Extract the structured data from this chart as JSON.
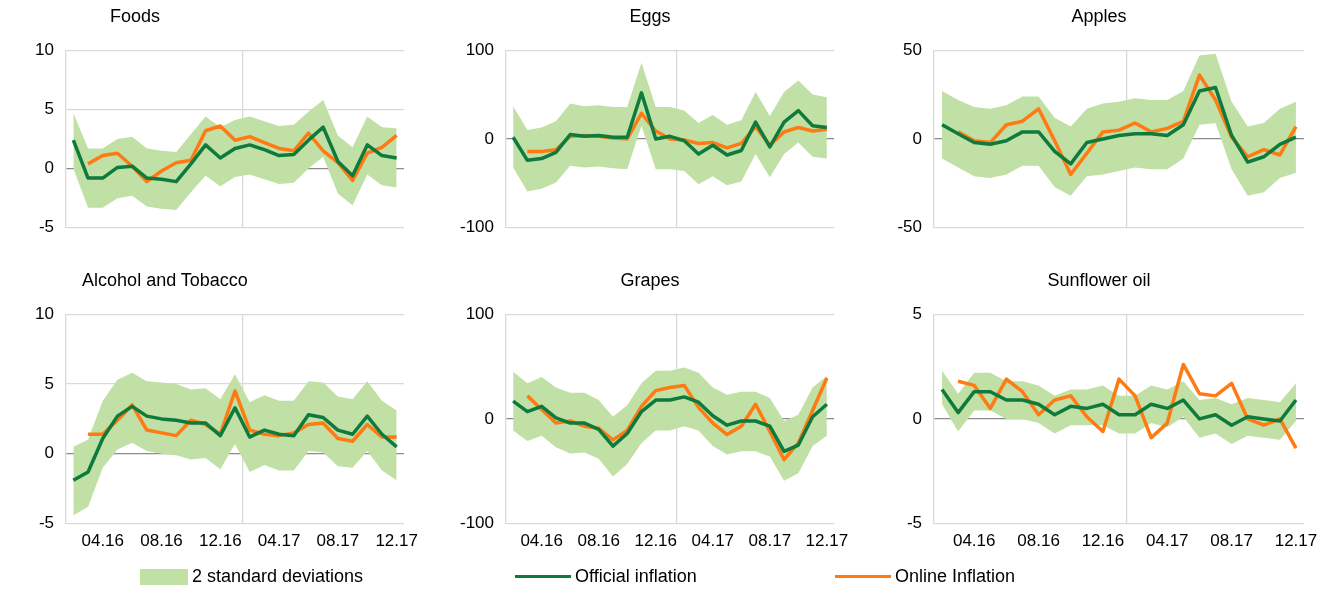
{
  "chart_data": [
    {
      "type": "line",
      "title": "Foods",
      "categories": [
        null,
        null,
        "04.16",
        null,
        null,
        null,
        "08.16",
        null,
        null,
        null,
        "12.16",
        null,
        null,
        null,
        "04.17",
        null,
        null,
        null,
        "08.17",
        null,
        null,
        null,
        "12.17"
      ],
      "ylim": [
        -5,
        10
      ],
      "yticks": [
        -5,
        0,
        5,
        10
      ],
      "grid": true,
      "legend": "bottom",
      "marker": "none",
      "line_style": "solid",
      "tick_labels": "y",
      "series": [
        {
          "name": "2 standard deviations",
          "type": "area",
          "color": "#c0e0a5",
          "values": [
            null,
            null,
            null,
            null,
            null,
            null,
            null,
            null,
            null,
            null,
            null,
            null,
            null,
            null,
            null,
            null,
            null,
            null,
            null,
            null,
            null,
            null,
            null
          ],
          "lower": [
            0.0,
            -3.3,
            -3.3,
            -2.5,
            -2.3,
            -3.2,
            -3.4,
            -3.5,
            -2.0,
            -0.6,
            -1.5,
            -0.7,
            -0.5,
            -0.9,
            -1.3,
            -1.2,
            0.0,
            1.0,
            -2.1,
            -3.1,
            -0.5,
            -1.4,
            -1.6
          ],
          "upper": [
            4.7,
            1.7,
            1.7,
            2.5,
            2.7,
            1.7,
            1.5,
            1.4,
            2.9,
            4.4,
            3.5,
            4.1,
            4.4,
            4.0,
            3.6,
            3.7,
            4.8,
            5.8,
            2.8,
            1.8,
            4.4,
            3.5,
            3.4
          ]
        },
        {
          "name": "Official inflation",
          "type": "line",
          "color": "#0e7a3c",
          "values": [
            2.4,
            -0.8,
            -0.8,
            0.1,
            0.2,
            -0.8,
            -0.9,
            -1.1,
            0.4,
            2.0,
            0.9,
            1.7,
            2.0,
            1.6,
            1.1,
            1.2,
            2.4,
            3.5,
            0.6,
            -0.6,
            2.0,
            1.1,
            0.9
          ]
        },
        {
          "name": "Online Inflation",
          "type": "line",
          "color": "#ff7a12",
          "values": [
            null,
            0.4,
            1.1,
            1.3,
            0.2,
            -1.1,
            -0.2,
            0.5,
            0.7,
            3.2,
            3.6,
            2.4,
            2.7,
            2.2,
            1.7,
            1.5,
            3.0,
            1.5,
            0.5,
            -1.0,
            1.3,
            1.8,
            2.8
          ]
        }
      ]
    },
    {
      "type": "line",
      "title": "Eggs",
      "categories": [
        null,
        null,
        "04.16",
        null,
        null,
        null,
        "08.16",
        null,
        null,
        null,
        "12.16",
        null,
        null,
        null,
        "04.17",
        null,
        null,
        null,
        "08.17",
        null,
        null,
        null,
        "12.17"
      ],
      "ylim": [
        -100,
        100
      ],
      "yticks": [
        -100,
        0,
        100
      ],
      "grid": true,
      "legend": "bottom",
      "marker": "none",
      "line_style": "solid",
      "tick_labels": "y",
      "series": [
        {
          "type": "area",
          "color": "#c0e0a5",
          "values": [
            null,
            null,
            null,
            null,
            null,
            null,
            null,
            null,
            null,
            null,
            null,
            null,
            null,
            null,
            null,
            null,
            null,
            null,
            null,
            null,
            null,
            null,
            null
          ],
          "lower": [
            -32,
            -59,
            -56,
            -49,
            -30,
            -32,
            -31,
            -33,
            -34,
            15,
            -34,
            -34,
            -36,
            -51,
            -42,
            -52,
            -48,
            -17,
            -43,
            -17,
            -4,
            -20,
            -22
          ],
          "upper": [
            37,
            10,
            13,
            20,
            40,
            37,
            38,
            36,
            36,
            86,
            36,
            36,
            32,
            18,
            27,
            16,
            21,
            53,
            26,
            53,
            66,
            50,
            47
          ]
        },
        {
          "name": "Official inflation",
          "type": "line",
          "color": "#0e7a3c",
          "values": [
            2,
            -24,
            -22,
            -15,
            5,
            3,
            4,
            2,
            2,
            52,
            0,
            3,
            -2,
            -17,
            -7,
            -18,
            -13,
            19,
            -9,
            19,
            32,
            15,
            13
          ]
        },
        {
          "name": "Online Inflation",
          "type": "line",
          "color": "#ff7a12",
          "values": [
            null,
            -14,
            -14,
            -12,
            3,
            4,
            3,
            1,
            0,
            29,
            9,
            0,
            -1,
            -5,
            -4,
            -10,
            -5,
            14,
            -7,
            8,
            13,
            9,
            11
          ]
        }
      ]
    },
    {
      "type": "line",
      "title": "Apples",
      "categories": [
        null,
        null,
        "04.16",
        null,
        null,
        null,
        "08.16",
        null,
        null,
        null,
        "12.16",
        null,
        null,
        null,
        "04.17",
        null,
        null,
        null,
        "08.17",
        null,
        null,
        null,
        "12.17"
      ],
      "ylim": [
        -50,
        50
      ],
      "yticks": [
        -50,
        0,
        50
      ],
      "grid": true,
      "legend": "bottom",
      "marker": "none",
      "line_style": "solid",
      "tick_labels": "y",
      "series": [
        {
          "type": "area",
          "color": "#c0e0a5",
          "values": [
            null,
            null,
            null,
            null,
            null,
            null,
            null,
            null,
            null,
            null,
            null,
            null,
            null,
            null,
            null,
            null,
            null,
            null,
            null,
            null,
            null,
            null,
            null
          ],
          "lower": [
            -11,
            -16,
            -21,
            -22,
            -20,
            -15,
            -15,
            -27,
            -32,
            -21,
            -20,
            -18,
            -16,
            -17,
            -17,
            -11,
            8,
            9,
            -17,
            -32,
            -30,
            -22,
            -19
          ],
          "upper": [
            27,
            22,
            18,
            17,
            19,
            24,
            24,
            12,
            7,
            17,
            20,
            21,
            23,
            22,
            22,
            27,
            47,
            48,
            21,
            7,
            9,
            17,
            21
          ]
        },
        {
          "name": "Official inflation",
          "type": "line",
          "color": "#0e7a3c",
          "values": [
            8,
            3,
            -2,
            -3,
            -1,
            4,
            4,
            -7,
            -14,
            -2,
            0,
            2,
            3,
            3,
            2,
            8,
            27,
            29,
            2,
            -13,
            -10,
            -3,
            1
          ]
        },
        {
          "name": "Online Inflation",
          "type": "line",
          "color": "#ff7a12",
          "values": [
            null,
            4,
            -1,
            -2,
            8,
            10,
            17,
            -1,
            -20,
            -8,
            4,
            5,
            9,
            4,
            6,
            10,
            36,
            22,
            1,
            -10,
            -6,
            -9,
            7
          ]
        }
      ]
    },
    {
      "type": "line",
      "title": "Alcohol and Tobacco",
      "categories": [
        null,
        null,
        "04.16",
        null,
        null,
        null,
        "08.16",
        null,
        null,
        null,
        "12.16",
        null,
        null,
        null,
        "04.17",
        null,
        null,
        null,
        "08.17",
        null,
        null,
        null,
        "12.17"
      ],
      "ylim": [
        -5,
        10
      ],
      "yticks": [
        -5,
        0,
        5,
        10
      ],
      "grid": true,
      "legend": "bottom",
      "marker": "none",
      "line_style": "solid",
      "series": [
        {
          "type": "area",
          "color": "#c0e0a5",
          "values": [
            null,
            null,
            null,
            null,
            null,
            null,
            null,
            null,
            null,
            null,
            null,
            null,
            null,
            null,
            null,
            null,
            null,
            null,
            null,
            null,
            null,
            null,
            null
          ],
          "lower": [
            -4.4,
            -3.8,
            -1.0,
            0.3,
            0.8,
            0.2,
            0.0,
            -0.1,
            -0.4,
            -0.3,
            -1.1,
            0.7,
            -1.3,
            -0.8,
            -1.2,
            -1.2,
            0.2,
            0.1,
            -0.9,
            -1.0,
            0.2,
            -1.2,
            -1.9
          ],
          "upper": [
            0.5,
            1.0,
            3.8,
            5.3,
            5.8,
            5.2,
            5.1,
            5.0,
            4.6,
            4.7,
            3.9,
            5.7,
            3.7,
            4.2,
            3.8,
            3.8,
            5.2,
            5.1,
            4.1,
            3.9,
            5.2,
            3.8,
            3.1
          ]
        },
        {
          "name": "Official inflation",
          "type": "line",
          "color": "#0e7a3c",
          "values": [
            -1.9,
            -1.3,
            1.1,
            2.7,
            3.4,
            2.7,
            2.5,
            2.4,
            2.2,
            2.2,
            1.3,
            3.3,
            1.2,
            1.7,
            1.4,
            1.3,
            2.8,
            2.6,
            1.7,
            1.4,
            2.7,
            1.4,
            0.5
          ]
        },
        {
          "name": "Online Inflation",
          "type": "line",
          "color": "#ff7a12",
          "values": [
            null,
            1.4,
            1.4,
            2.4,
            3.5,
            1.7,
            1.5,
            1.3,
            2.4,
            2.1,
            1.4,
            4.5,
            1.7,
            1.4,
            1.3,
            1.5,
            2.1,
            2.2,
            1.1,
            0.9,
            2.1,
            1.2,
            1.2
          ]
        }
      ]
    },
    {
      "type": "line",
      "title": "Grapes",
      "categories": [
        null,
        null,
        "04.16",
        null,
        null,
        null,
        "08.16",
        null,
        null,
        null,
        "12.16",
        null,
        null,
        null,
        "04.17",
        null,
        null,
        null,
        "08.17",
        null,
        null,
        null,
        "12.17"
      ],
      "ylim": [
        -100,
        100
      ],
      "yticks": [
        -100,
        0,
        100
      ],
      "grid": true,
      "legend": "bottom",
      "marker": "none",
      "line_style": "solid",
      "series": [
        {
          "type": "area",
          "color": "#c0e0a5",
          "values": [
            null,
            null,
            null,
            null,
            null,
            null,
            null,
            null,
            null,
            null,
            null,
            null,
            null,
            null,
            null,
            null,
            null,
            null,
            null,
            null,
            null,
            null,
            null
          ],
          "lower": [
            -11,
            -21,
            -16,
            -27,
            -33,
            -32,
            -38,
            -55,
            -43,
            -23,
            -11,
            -11,
            -7,
            -11,
            -26,
            -34,
            -31,
            -31,
            -36,
            -59,
            -52,
            -26,
            -16
          ],
          "upper": [
            45,
            34,
            40,
            30,
            25,
            25,
            18,
            2,
            13,
            34,
            46,
            46,
            49,
            44,
            30,
            23,
            26,
            26,
            20,
            -2,
            4,
            30,
            41
          ]
        },
        {
          "name": "Official inflation",
          "type": "line",
          "color": "#0e7a3c",
          "values": [
            17,
            7,
            12,
            1,
            -4,
            -4,
            -10,
            -26,
            -14,
            7,
            18,
            18,
            21,
            16,
            3,
            -6,
            -2,
            -2,
            -7,
            -31,
            -25,
            2,
            14
          ]
        },
        {
          "name": "Online Inflation",
          "type": "line",
          "color": "#ff7a12",
          "values": [
            null,
            22,
            9,
            -4,
            -2,
            -7,
            -9,
            -20,
            -11,
            12,
            27,
            30,
            32,
            11,
            -4,
            -15,
            -7,
            14,
            -12,
            -39,
            -23,
            8,
            39
          ]
        }
      ]
    },
    {
      "type": "line",
      "title": "Sunflower oil",
      "categories": [
        null,
        null,
        "04.16",
        null,
        null,
        null,
        "08.16",
        null,
        null,
        null,
        "12.16",
        null,
        null,
        null,
        "04.17",
        null,
        null,
        null,
        "08.17",
        null,
        null,
        null,
        "12.17"
      ],
      "ylim": [
        -5,
        5
      ],
      "yticks": [
        -5,
        0,
        5
      ],
      "grid": true,
      "legend": "bottom",
      "marker": "none",
      "line_style": "solid",
      "series": [
        {
          "type": "area",
          "color": "#c0e0a5",
          "values": [
            null,
            null,
            null,
            null,
            null,
            null,
            null,
            null,
            null,
            null,
            null,
            null,
            null,
            null,
            null,
            null,
            null,
            null,
            null,
            null,
            null,
            null,
            null
          ],
          "lower": [
            0.7,
            -0.6,
            0.4,
            0.4,
            0.0,
            0.0,
            -0.2,
            -0.7,
            -0.3,
            -0.3,
            -0.3,
            -0.7,
            -0.7,
            -0.2,
            -0.4,
            0.1,
            -0.9,
            -0.7,
            -1.2,
            -0.8,
            -0.9,
            -1.0,
            -0.1
          ],
          "upper": [
            2.3,
            1.2,
            2.2,
            2.2,
            1.8,
            1.8,
            1.6,
            1.1,
            1.4,
            1.4,
            1.6,
            1.1,
            1.1,
            1.6,
            1.4,
            1.8,
            0.9,
            1.0,
            0.7,
            1.0,
            0.9,
            0.8,
            1.7
          ]
        },
        {
          "name": "Official inflation",
          "type": "line",
          "color": "#0e7a3c",
          "values": [
            1.4,
            0.3,
            1.3,
            1.3,
            0.9,
            0.9,
            0.7,
            0.2,
            0.6,
            0.5,
            0.7,
            0.2,
            0.2,
            0.7,
            0.5,
            0.9,
            0.0,
            0.2,
            -0.3,
            0.1,
            0.0,
            -0.1,
            0.9
          ]
        },
        {
          "name": "Online Inflation",
          "type": "line",
          "color": "#ff7a12",
          "values": [
            null,
            1.8,
            1.6,
            0.5,
            1.9,
            1.3,
            0.2,
            0.9,
            1.1,
            0.1,
            -0.6,
            1.9,
            1.1,
            -0.9,
            -0.2,
            2.6,
            1.2,
            1.1,
            1.7,
            0.0,
            -0.3,
            0.0,
            -1.4
          ]
        }
      ]
    }
  ]
}
